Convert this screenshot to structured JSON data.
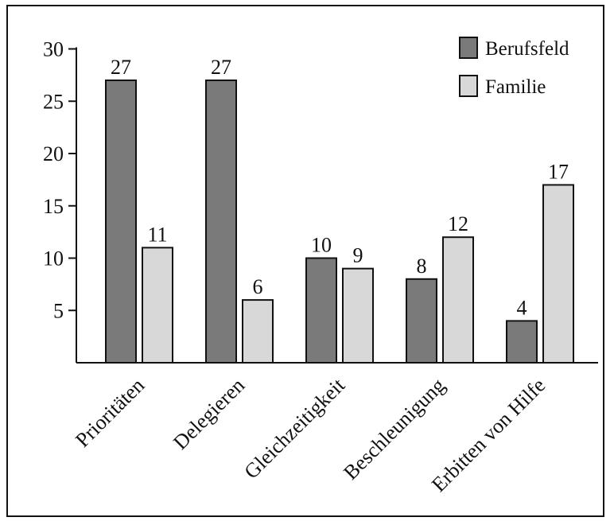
{
  "chart_data": {
    "type": "bar",
    "categories": [
      "Prioritäten",
      "Delegieren",
      "Gleichzeitigkeit",
      "Beschleunigung",
      "Erbitten von Hilfe"
    ],
    "series": [
      {
        "name": "Berufsfeld",
        "color": "#7a7a7a",
        "values": [
          27,
          27,
          10,
          8,
          4
        ]
      },
      {
        "name": "Familie",
        "color": "#d8d8d8",
        "values": [
          11,
          6,
          9,
          12,
          17
        ]
      }
    ],
    "ylim": [
      0,
      30
    ],
    "yticks": [
      "5",
      "10",
      "15",
      "20",
      "25",
      "30"
    ],
    "legend_position": "top-right",
    "grid": false
  }
}
